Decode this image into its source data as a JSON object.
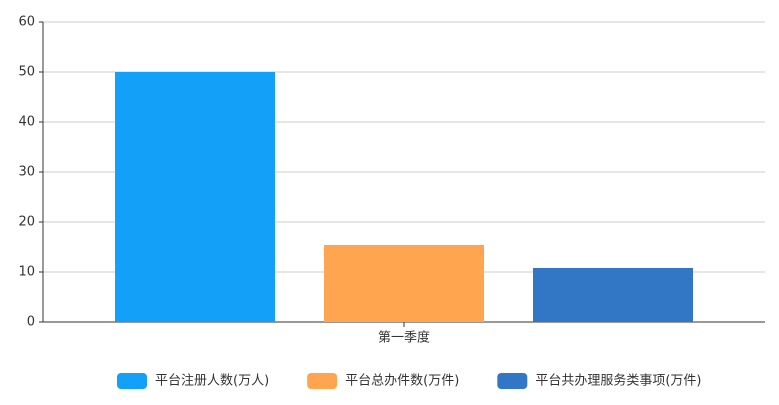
{
  "chart_data": {
    "type": "bar",
    "categories": [
      "第一季度"
    ],
    "series": [
      {
        "name": "平台注册人数(万人)",
        "color": "#12a0f8",
        "values": [
          50
        ]
      },
      {
        "name": "平台总办件数(万件)",
        "color": "#ffa54f",
        "values": [
          15.4
        ]
      },
      {
        "name": "平台共办理服务类事项(万件)",
        "color": "#3177c5",
        "values": [
          10.8
        ]
      }
    ],
    "ylim": [
      0,
      60
    ],
    "yticks": [
      0,
      10,
      20,
      30,
      40,
      50,
      60
    ],
    "grid": true,
    "legend": "bottom"
  }
}
